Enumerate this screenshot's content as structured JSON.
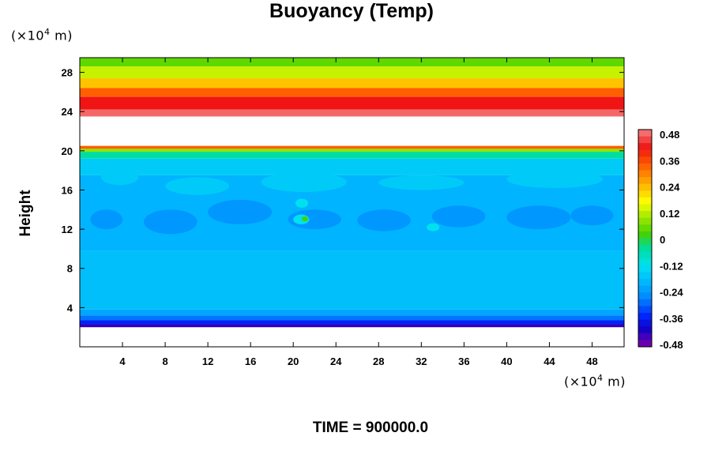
{
  "chart_data": {
    "type": "heatmap",
    "title": "Buoyancy (Temp)",
    "ylabel": "Height",
    "xunit_prefix": "(×10",
    "xunit_exp": "4",
    "xunit_suffix": " m)",
    "yunit_prefix": "(×10",
    "yunit_exp": "4",
    "yunit_suffix": " m)",
    "time_label": "TIME = 900000.0",
    "xlim": [
      0,
      51
    ],
    "ylim": [
      0,
      29.5
    ],
    "x_ticks": [
      "4",
      "8",
      "12",
      "16",
      "20",
      "24",
      "28",
      "32",
      "36",
      "40",
      "44",
      "48"
    ],
    "y_ticks": [
      "4",
      "8",
      "12",
      "16",
      "20",
      "24",
      "28"
    ],
    "colorbar": {
      "min": -0.48,
      "max": 0.48,
      "labels": [
        "0.48",
        "0.36",
        "0.24",
        "0.12",
        "0",
        "-0.12",
        "-0.24",
        "-0.36",
        "-0.48"
      ]
    },
    "layers": [
      {
        "from": 29.5,
        "to": 28.6,
        "value": 0.04
      },
      {
        "from": 28.6,
        "to": 27.4,
        "value": 0.12
      },
      {
        "from": 27.4,
        "to": 26.4,
        "value": 0.22
      },
      {
        "from": 26.4,
        "to": 25.5,
        "value": 0.32
      },
      {
        "from": 25.5,
        "to": 24.2,
        "value": 0.4
      },
      {
        "from": 24.2,
        "to": 23.5,
        "value": 0.46
      },
      {
        "from": 20.5,
        "to": 20.2,
        "value": 0.32
      },
      {
        "from": 20.2,
        "to": 19.9,
        "value": 0.08
      },
      {
        "from": 19.9,
        "to": 19.2,
        "value": -0.05
      },
      {
        "from": 19.2,
        "to": 17.5,
        "value": -0.16
      },
      {
        "from": 17.5,
        "to": 9.8,
        "value": -0.2
      },
      {
        "from": 9.8,
        "to": 3.8,
        "value": -0.18
      },
      {
        "from": 3.8,
        "to": 3.2,
        "value": -0.22
      },
      {
        "from": 3.2,
        "to": 2.7,
        "value": -0.28
      },
      {
        "from": 2.7,
        "to": 2.3,
        "value": -0.35
      },
      {
        "from": 2.3,
        "to": 2.0,
        "value": -0.42
      }
    ],
    "patches": [
      {
        "x": 2.0,
        "y": 16.5,
        "w": 3.5,
        "h": 1.6,
        "value": -0.16
      },
      {
        "x": 8.0,
        "y": 15.5,
        "w": 6.0,
        "h": 1.8,
        "value": -0.16
      },
      {
        "x": 17.0,
        "y": 15.8,
        "w": 8.0,
        "h": 2.0,
        "value": -0.16
      },
      {
        "x": 28.0,
        "y": 16.0,
        "w": 8.0,
        "h": 1.5,
        "value": -0.16
      },
      {
        "x": 40.0,
        "y": 16.2,
        "w": 9.0,
        "h": 1.8,
        "value": -0.16
      },
      {
        "x": 1.0,
        "y": 12.0,
        "w": 3.0,
        "h": 2.0,
        "value": -0.24
      },
      {
        "x": 6.0,
        "y": 11.5,
        "w": 5.0,
        "h": 2.5,
        "value": -0.24
      },
      {
        "x": 12.0,
        "y": 12.5,
        "w": 6.0,
        "h": 2.5,
        "value": -0.24
      },
      {
        "x": 19.5,
        "y": 12.0,
        "w": 5.0,
        "h": 2.0,
        "value": -0.24
      },
      {
        "x": 26.0,
        "y": 11.8,
        "w": 5.0,
        "h": 2.2,
        "value": -0.24
      },
      {
        "x": 33.0,
        "y": 12.2,
        "w": 5.0,
        "h": 2.2,
        "value": -0.24
      },
      {
        "x": 40.0,
        "y": 12.0,
        "w": 6.0,
        "h": 2.4,
        "value": -0.24
      },
      {
        "x": 46.0,
        "y": 12.4,
        "w": 4.0,
        "h": 2.0,
        "value": -0.24
      },
      {
        "x": 20.0,
        "y": 12.5,
        "w": 1.5,
        "h": 1.0,
        "value": -0.12
      },
      {
        "x": 20.2,
        "y": 14.2,
        "w": 1.2,
        "h": 0.9,
        "value": -0.12
      },
      {
        "x": 32.5,
        "y": 11.8,
        "w": 1.2,
        "h": 0.8,
        "value": -0.12
      },
      {
        "x": 20.8,
        "y": 12.8,
        "w": 0.6,
        "h": 0.5,
        "value": 0.02
      }
    ]
  }
}
